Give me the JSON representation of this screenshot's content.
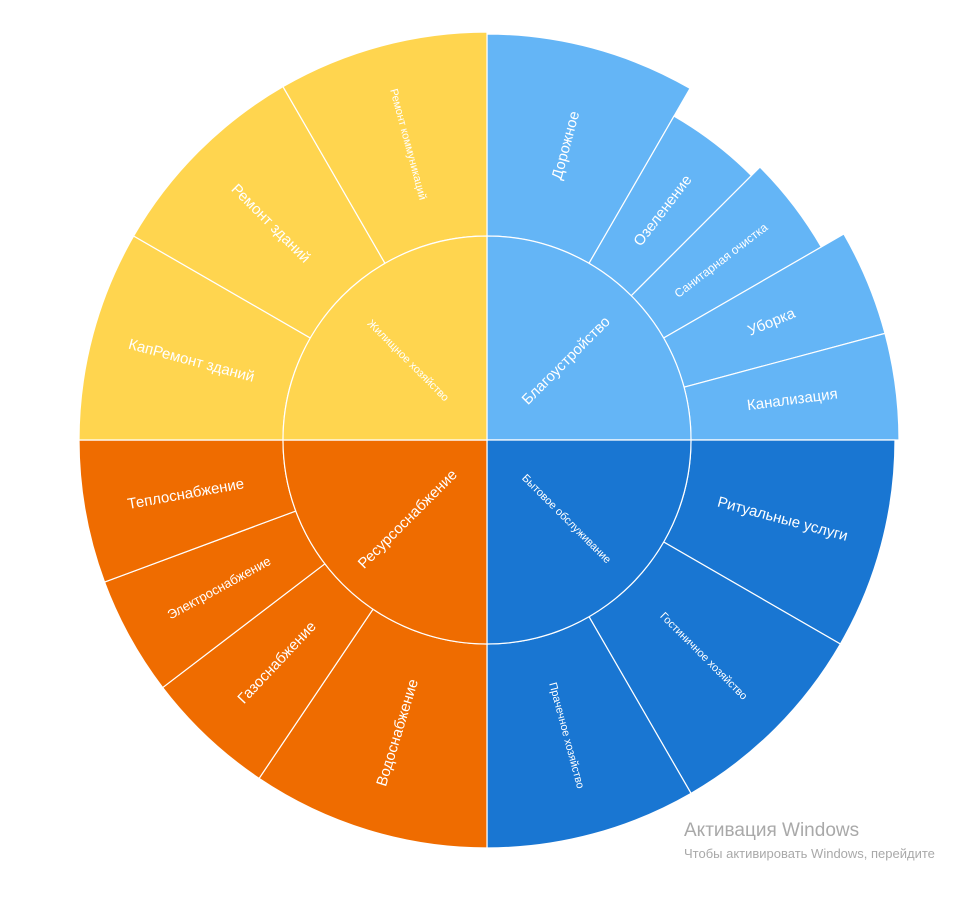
{
  "chart_data": {
    "type": "sunburst",
    "colors": {
      "Благоустройство": "#64B5F6",
      "Бытовое обслуживание": "#1976D2",
      "Ресурсоснабжение": "#EF6C00",
      "Жилищное хозяйство": "#FFD54F"
    },
    "groups": [
      {
        "name": "Благоустройство",
        "children": [
          {
            "name": "Дорожное",
            "value": 2.0
          },
          {
            "name": "Озеленение",
            "value": 1.0
          },
          {
            "name": "Санитарная очистка",
            "value": 1.0
          },
          {
            "name": "Уборка",
            "value": 1.0
          },
          {
            "name": "Канализация",
            "value": 1.0
          }
        ]
      },
      {
        "name": "Бытовое обслуживание",
        "children": [
          {
            "name": "Ритуальные услуги",
            "value": 1.0
          },
          {
            "name": "Гостиничное хозяйство",
            "value": 1.0
          },
          {
            "name": "Прачечное хозяйство",
            "value": 1.0
          }
        ]
      },
      {
        "name": "Ресурсоснабжение",
        "children": [
          {
            "name": "Водоснабжение",
            "value": 1.0
          },
          {
            "name": "Газоснабжение",
            "value": 0.55
          },
          {
            "name": "Электроснабжение",
            "value": 0.5
          },
          {
            "name": "Теплоснабжение",
            "value": 0.6
          }
        ]
      },
      {
        "name": "Жилищное хозяйство",
        "children": [
          {
            "name": "КапРемонт зданий",
            "value": 1.0
          },
          {
            "name": "Ремонт зданий",
            "value": 1.0
          },
          {
            "name": "Ремонт коммуникаций",
            "value": 1.0
          }
        ]
      }
    ]
  },
  "watermark": {
    "line1": "Активация Windows",
    "line2": "Чтобы активировать Windows, перейдите"
  }
}
